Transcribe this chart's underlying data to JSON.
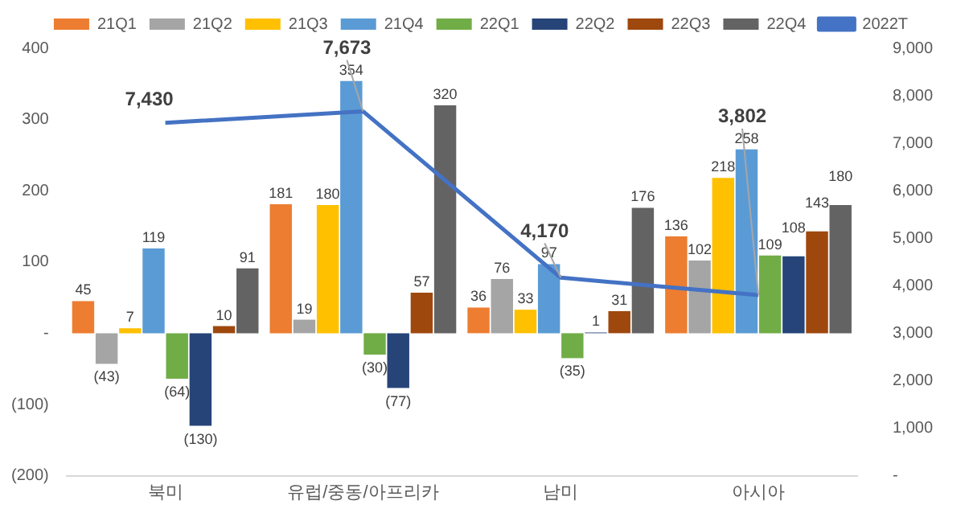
{
  "chart_data": {
    "type": "bar",
    "categories": [
      "북미",
      "유럽/중동/아프리카",
      "남미",
      "아시아"
    ],
    "series": [
      {
        "name": "21Q1",
        "color": "#ed7d31",
        "values": [
          45,
          181,
          36,
          136
        ],
        "value_labels": [
          "45",
          "181",
          "36",
          "136"
        ]
      },
      {
        "name": "21Q2",
        "color": "#a5a5a5",
        "values": [
          -43,
          19,
          76,
          102
        ],
        "value_labels": [
          "(43)",
          "19",
          "76",
          "102"
        ]
      },
      {
        "name": "21Q3",
        "color": "#ffc000",
        "values": [
          7,
          180,
          33,
          218
        ],
        "value_labels": [
          "7",
          "180",
          "33",
          "218"
        ]
      },
      {
        "name": "21Q4",
        "color": "#5b9bd5",
        "values": [
          119,
          354,
          97,
          258
        ],
        "value_labels": [
          "119",
          "354",
          "97",
          "258"
        ]
      },
      {
        "name": "22Q1",
        "color": "#70ad47",
        "values": [
          -64,
          -30,
          -35,
          109
        ],
        "value_labels": [
          "(64)",
          "(30)",
          "(35)",
          "109"
        ]
      },
      {
        "name": "22Q2",
        "color": "#264478",
        "values": [
          -130,
          -77,
          1,
          108
        ],
        "value_labels": [
          "(130)",
          "(77)",
          "1",
          "108"
        ]
      },
      {
        "name": "22Q3",
        "color": "#9e480e",
        "values": [
          10,
          57,
          31,
          143
        ],
        "value_labels": [
          "10",
          "57",
          "31",
          "143"
        ]
      },
      {
        "name": "22Q4",
        "color": "#636363",
        "values": [
          91,
          320,
          176,
          180
        ],
        "value_labels": [
          "91",
          "320",
          "176",
          "180"
        ]
      },
      {
        "name": "2022T",
        "type": "line",
        "axis": "y2",
        "color": "#4472c4",
        "values": [
          7430,
          7673,
          4170,
          3802
        ],
        "value_labels": [
          "7,430",
          "7,673",
          "4,170",
          "3,802"
        ]
      }
    ],
    "ylim": [
      -200,
      400
    ],
    "yticks": [
      400,
      300,
      200,
      100,
      {
        "value": 0,
        "label": "-"
      },
      {
        "value": -100,
        "label": "(100)"
      },
      {
        "value": -200,
        "label": "(200)"
      }
    ],
    "y2lim": [
      0,
      9000
    ],
    "y2ticks": [
      {
        "value": 9000,
        "label": "9,000"
      },
      {
        "value": 8000,
        "label": "8,000"
      },
      {
        "value": 7000,
        "label": "7,000"
      },
      {
        "value": 6000,
        "label": "6,000"
      },
      {
        "value": 5000,
        "label": "5,000"
      },
      {
        "value": 4000,
        "label": "4,000"
      },
      {
        "value": 3000,
        "label": "3,000"
      },
      {
        "value": 2000,
        "label": "2,000"
      },
      {
        "value": 1000,
        "label": "1,000"
      },
      {
        "value": 0,
        "label": "-"
      }
    ],
    "grid": false,
    "legend": "top",
    "marker": "none"
  }
}
